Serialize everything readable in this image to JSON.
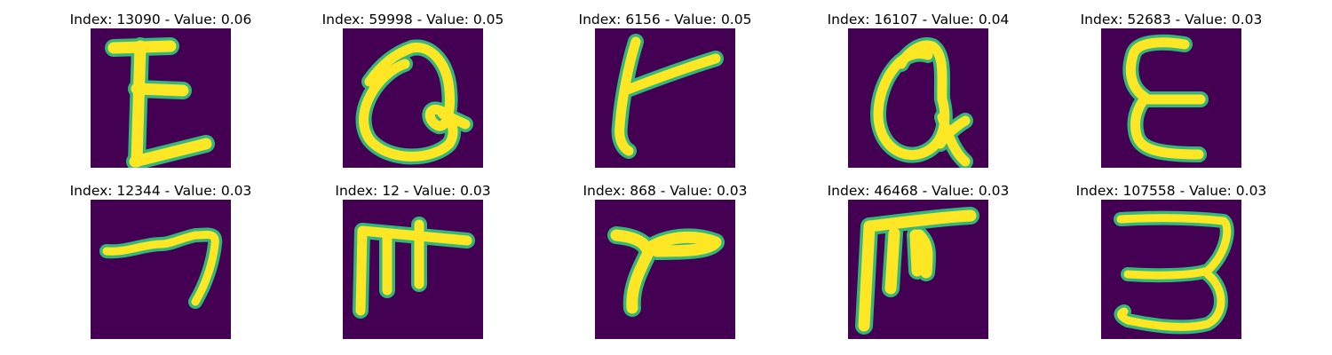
{
  "colors": {
    "background": "#440154",
    "stroke": "#fde725",
    "stroke_edge": "#35b779"
  },
  "panels": [
    {
      "title": "Index: 13090 - Value: 0.06",
      "index": 13090,
      "value": 0.06
    },
    {
      "title": "Index: 59998 - Value: 0.05",
      "index": 59998,
      "value": 0.05
    },
    {
      "title": "Index: 6156 - Value: 0.05",
      "index": 6156,
      "value": 0.05
    },
    {
      "title": "Index: 16107 - Value: 0.04",
      "index": 16107,
      "value": 0.04
    },
    {
      "title": "Index: 52683 - Value: 0.03",
      "index": 52683,
      "value": 0.03
    },
    {
      "title": "Index: 12344 - Value: 0.03",
      "index": 12344,
      "value": 0.03
    },
    {
      "title": "Index: 12 - Value: 0.03",
      "index": 12,
      "value": 0.03
    },
    {
      "title": "Index: 868 - Value: 0.03",
      "index": 868,
      "value": 0.03
    },
    {
      "title": "Index: 46468 - Value: 0.03",
      "index": 46468,
      "value": 0.03
    },
    {
      "title": "Index: 107558 - Value: 0.03",
      "index": 107558,
      "value": 0.03
    }
  ]
}
